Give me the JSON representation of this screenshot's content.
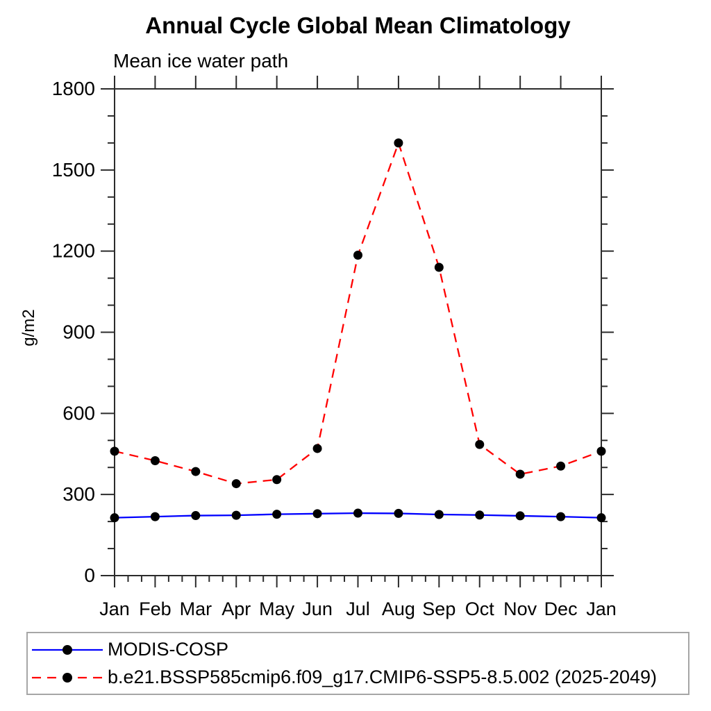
{
  "title": "Annual Cycle Global Mean Climatology",
  "subtitle": "Mean ice water path",
  "ylabel": "g/m2",
  "chart_data": {
    "type": "line",
    "categories": [
      "Jan",
      "Feb",
      "Mar",
      "Apr",
      "May",
      "Jun",
      "Jul",
      "Aug",
      "Sep",
      "Oct",
      "Nov",
      "Dec",
      "Jan"
    ],
    "series": [
      {
        "name": "MODIS-COSP",
        "color": "#0000ff",
        "line_style": "solid",
        "marker": "filled-circle",
        "values": [
          214,
          218,
          222,
          223,
          227,
          229,
          231,
          230,
          226,
          224,
          221,
          218,
          214
        ]
      },
      {
        "name": "b.e21.BSSP585cmip6.f09_g17.CMIP6-SSP5-8.5.002 (2025-2049)",
        "color": "#ff0000",
        "line_style": "dashed",
        "marker": "filled-circle",
        "values": [
          460,
          425,
          385,
          340,
          355,
          470,
          1185,
          1600,
          1140,
          485,
          375,
          405,
          460
        ]
      }
    ],
    "xlabel": "",
    "ylim": [
      0,
      1800
    ],
    "ytick_major_step": 300,
    "ytick_minor_step": 100,
    "xtick_minor_per_interval": 2,
    "grid": false,
    "legend_position": "bottom-box",
    "marker_color": "#000000",
    "axis_color": "#2b2b2b"
  }
}
